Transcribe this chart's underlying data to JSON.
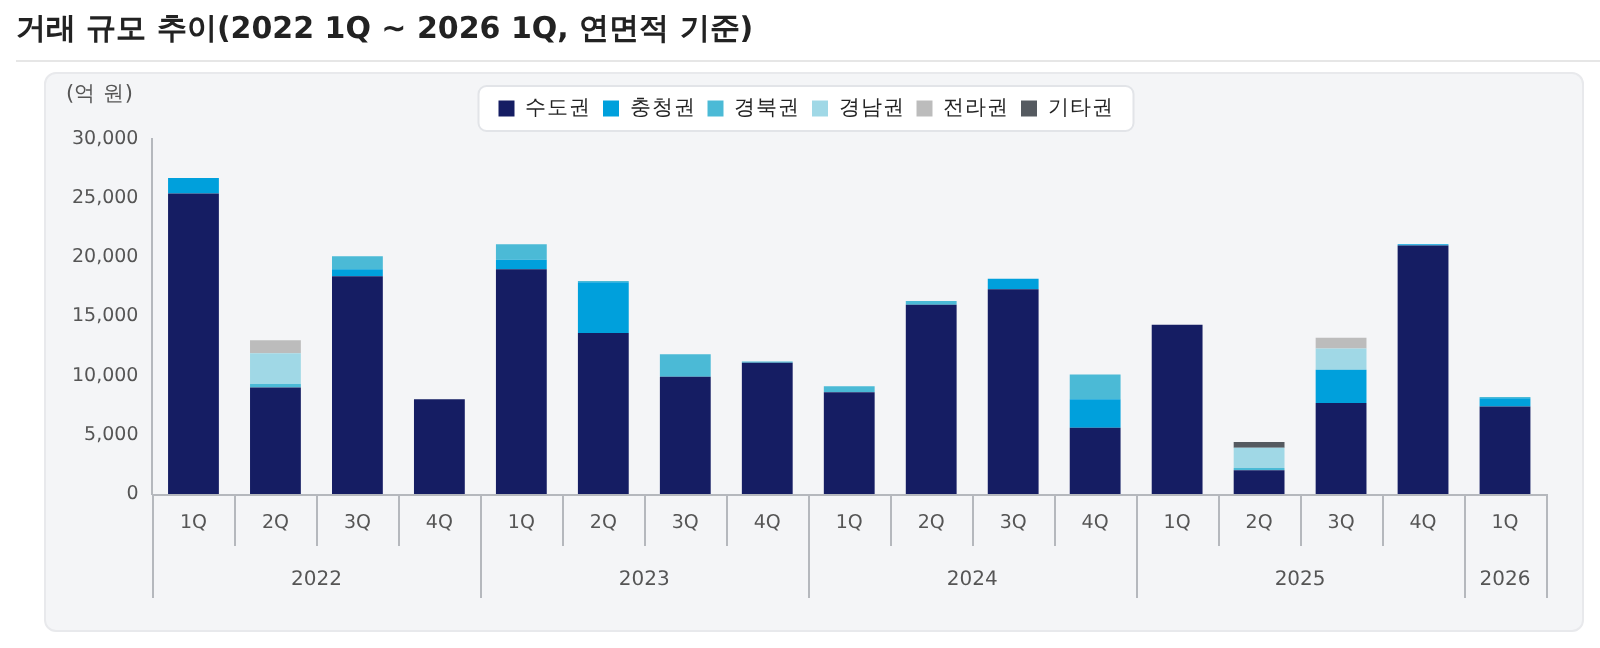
{
  "chart_data": {
    "type": "bar",
    "title": "거래 규모 추이(2022 1Q ~ 2026 1Q, 연면적 기준)",
    "ylabel": "(억 원)",
    "categories": [
      "1Q",
      "2Q",
      "3Q",
      "4Q",
      "1Q",
      "2Q",
      "3Q",
      "4Q",
      "1Q",
      "2Q",
      "3Q",
      "4Q",
      "1Q",
      "2Q",
      "3Q",
      "4Q",
      "1Q"
    ],
    "annotations": [
      "2022",
      "2023",
      "2024",
      "2025",
      "2026"
    ],
    "stacked": true,
    "legend": "top",
    "grid": false,
    "ylim": [
      0,
      30000
    ],
    "yticks": [
      {
        "value": 0,
        "label": "0"
      },
      {
        "value": 5000,
        "label": "5,000"
      },
      {
        "value": 10000,
        "label": "10,000"
      },
      {
        "value": 15000,
        "label": "15,000"
      },
      {
        "value": 20000,
        "label": "20,000"
      },
      {
        "value": 25000,
        "label": "25,000"
      },
      {
        "value": 30000,
        "label": "30,000"
      }
    ],
    "series": [
      {
        "name": "수도권",
        "color": "#151d63",
        "values": [
          25400,
          9000,
          18400,
          8000,
          19000,
          13600,
          9900,
          11100,
          8600,
          16000,
          17300,
          5600,
          14300,
          2000,
          7700,
          21000,
          7400
        ]
      },
      {
        "name": "충청권",
        "color": "#00a0dc",
        "values": [
          1300,
          0,
          600,
          0,
          800,
          4300,
          0,
          0,
          0,
          0,
          900,
          2400,
          0,
          0,
          2800,
          100,
          700
        ]
      },
      {
        "name": "경북권",
        "color": "#4bbad6",
        "values": [
          0,
          300,
          1100,
          0,
          1300,
          100,
          1900,
          100,
          500,
          300,
          0,
          2100,
          0,
          200,
          0,
          0,
          100
        ]
      },
      {
        "name": "경남권",
        "color": "#a0d8e6",
        "values": [
          0,
          2600,
          0,
          0,
          0,
          0,
          0,
          0,
          0,
          0,
          0,
          0,
          0,
          1700,
          1800,
          0,
          0
        ]
      },
      {
        "name": "전라권",
        "color": "#bcbcbc",
        "values": [
          0,
          1100,
          0,
          0,
          0,
          0,
          0,
          0,
          0,
          0,
          0,
          0,
          0,
          0,
          900,
          0,
          0
        ]
      },
      {
        "name": "기타권",
        "color": "#555a60",
        "values": [
          0,
          0,
          0,
          0,
          0,
          0,
          0,
          0,
          0,
          0,
          0,
          0,
          0,
          500,
          0,
          0,
          0
        ]
      }
    ]
  }
}
